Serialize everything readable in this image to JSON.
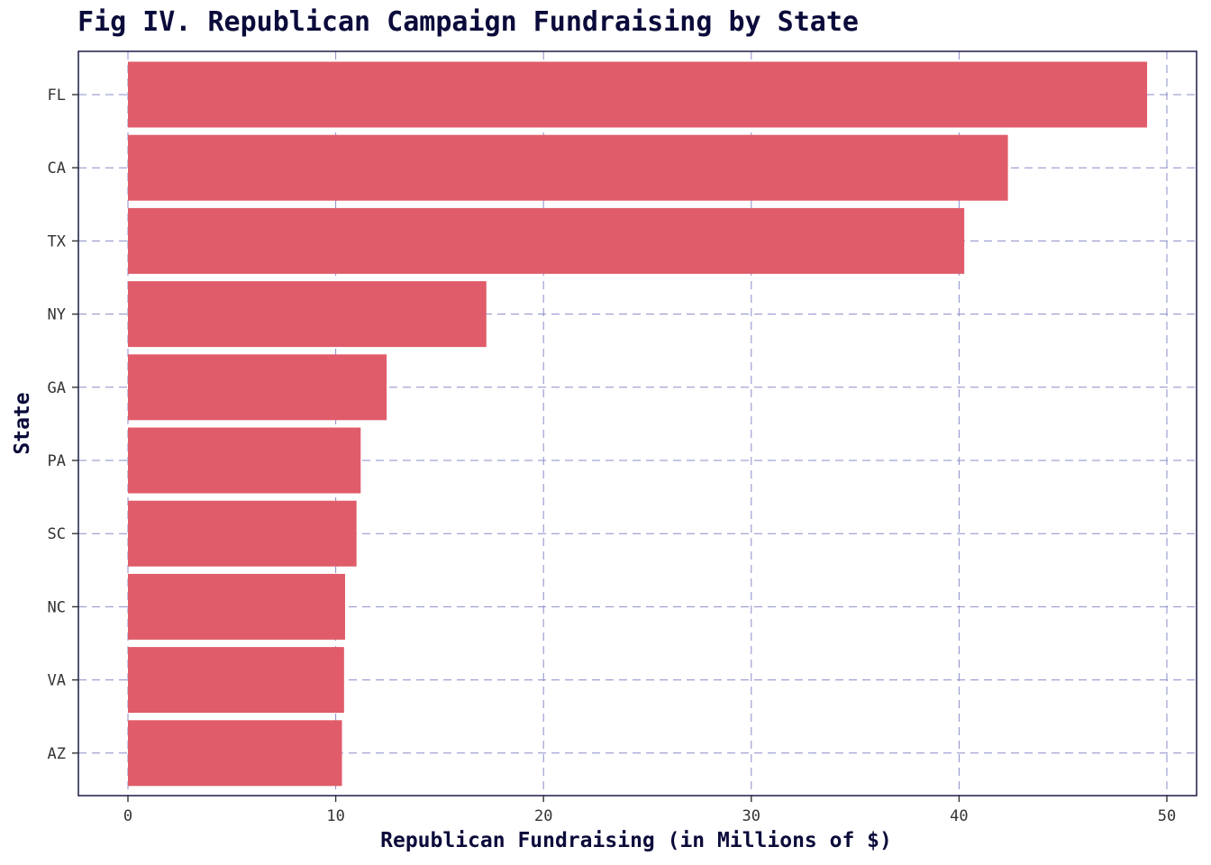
{
  "chart_data": {
    "type": "bar",
    "orientation": "horizontal",
    "title": "Fig IV. Republican Campaign Fundraising by State",
    "xlabel": "Republican Fundraising (in Millions of $)",
    "ylabel": "State",
    "categories": [
      "FL",
      "CA",
      "TX",
      "NY",
      "GA",
      "PA",
      "SC",
      "NC",
      "VA",
      "AZ"
    ],
    "values": [
      49.05,
      42.35,
      40.25,
      17.25,
      12.45,
      11.2,
      11.0,
      10.45,
      10.4,
      10.3
    ],
    "xlim": [
      0,
      50
    ],
    "xticks": [
      0,
      10,
      20,
      30,
      40,
      50
    ],
    "bar_color": "#e05c6a",
    "grid": true,
    "grid_color": "#8a8cc9",
    "grid_style": "dashed",
    "text_color": "#0b0b3b",
    "legend": false
  }
}
